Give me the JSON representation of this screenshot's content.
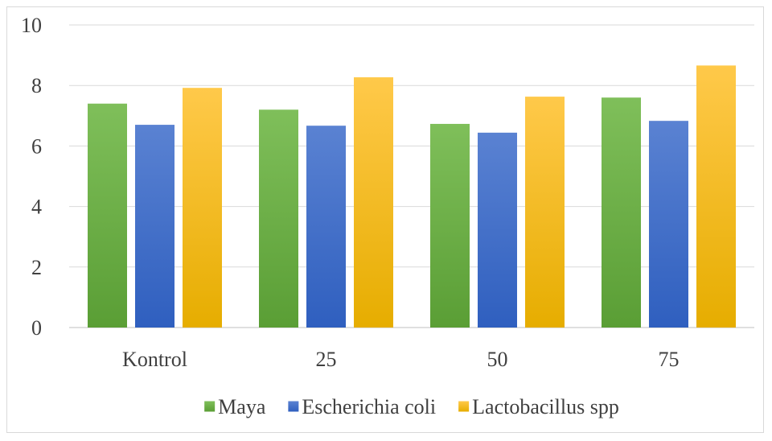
{
  "chart_data": {
    "type": "bar",
    "categories": [
      "Kontrol",
      "25",
      "50",
      "75"
    ],
    "series": [
      {
        "name": "Maya",
        "values": [
          7.4,
          7.2,
          6.73,
          7.6
        ],
        "color": "#70ad47"
      },
      {
        "name": "Escherichia coli",
        "values": [
          6.7,
          6.67,
          6.44,
          6.83
        ],
        "color": "#4472c4"
      },
      {
        "name": "Lactobacillus spp",
        "values": [
          7.92,
          8.27,
          7.63,
          8.66
        ],
        "color": "#ffc000"
      }
    ],
    "title": "",
    "xlabel": "",
    "ylabel": "",
    "ylim": [
      0,
      10
    ],
    "yticks": [
      "0",
      "2",
      "4",
      "6",
      "8",
      "10"
    ],
    "grid": true,
    "legend_position": "bottom"
  }
}
